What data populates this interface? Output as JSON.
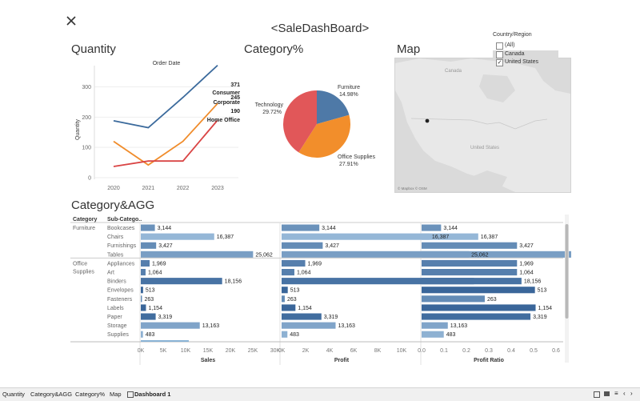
{
  "dashboard": {
    "title": "<SaleDashBoard>",
    "close_icon": "close-icon"
  },
  "sections": {
    "quantity": "Quantity",
    "category_pct": "Category%",
    "map": "Map",
    "category_agg": "Category&AGG"
  },
  "filter": {
    "title": "Country/Region",
    "options": [
      {
        "label": "(All)",
        "checked": false
      },
      {
        "label": "Canada",
        "checked": false
      },
      {
        "label": "United States",
        "checked": true
      }
    ]
  },
  "map": {
    "labels": {
      "canada": "Canada",
      "united_states": "United States",
      "credit": "© Mapbox © OSM"
    },
    "land_color": "#e8e8e8",
    "water_color": "#dadada",
    "marker_color": "#222222"
  },
  "chart_data": [
    {
      "type": "line",
      "title": "Order Date",
      "xlabel": "",
      "ylabel": "Quantity",
      "x": [
        "2020",
        "2021",
        "2022",
        "2023"
      ],
      "ylim": [
        0,
        370
      ],
      "yticks": [
        0,
        100,
        200,
        300
      ],
      "series": [
        {
          "name": "Consumer",
          "values": [
            188,
            165,
            265,
            371
          ],
          "color": "#3b6a9c",
          "end_label": "371"
        },
        {
          "name": "Corporate",
          "values": [
            120,
            42,
            120,
            245
          ],
          "color": "#f08c2b",
          "end_label": "245"
        },
        {
          "name": "Home Office",
          "values": [
            37,
            55,
            55,
            190
          ],
          "color": "#d94444",
          "end_label": "190"
        }
      ]
    },
    {
      "type": "pie",
      "slices": [
        {
          "name": "Furniture",
          "value": 14.98,
          "label": "14.98%",
          "color": "#4e79a7"
        },
        {
          "name": "Office Supplies",
          "value": 27.91,
          "label": "27.91%",
          "color": "#f28e2b"
        },
        {
          "name": "Technology",
          "value": 29.72,
          "label": "29.72%",
          "color": "#e15759"
        }
      ]
    },
    {
      "type": "bar",
      "orientation": "horizontal",
      "column_headers": {
        "category": "Category",
        "subcategory": "Sub-Catego.."
      },
      "groups": [
        {
          "category": "Furniture",
          "subcategories": [
            "Bookcases",
            "Chairs",
            "Furnishings",
            "Tables"
          ]
        },
        {
          "category": "Office Supplies",
          "subcategories": [
            "Appliances",
            "Art",
            "Binders",
            "Envelopes",
            "Fasteners",
            "Labels",
            "Paper",
            "Storage",
            "Supplies"
          ]
        }
      ],
      "rows": [
        {
          "label": "3,144",
          "sales": 3144,
          "profit": 3144,
          "profit_ratio": 0.087,
          "shade": 0.55
        },
        {
          "label": "16,387",
          "sales": 16387,
          "profit": 16387,
          "profit_ratio": 0.0354,
          "shade": 0.25
        },
        {
          "label": "3,427",
          "sales": 3427,
          "profit": 3427,
          "profit_ratio": 0.426,
          "shade": 0.6
        },
        {
          "label": "25,062",
          "sales": 25062,
          "profit": 25062,
          "profit_ratio": 0.211,
          "shade": 0.45
        },
        {
          "label": "1,969",
          "sales": 1969,
          "profit": 1969,
          "profit_ratio": 0.426,
          "shade": 0.7
        },
        {
          "label": "1,064",
          "sales": 1064,
          "profit": 1064,
          "profit_ratio": 0.426,
          "shade": 0.7
        },
        {
          "label": "18,156",
          "sales": 18156,
          "profit": 16030,
          "profit_ratio": 0.446,
          "shade": 0.8
        },
        {
          "label": "513",
          "sales": 513,
          "profit": 513,
          "profit_ratio": 0.506,
          "shade": 0.9
        },
        {
          "label": "263",
          "sales": 263,
          "profit": 263,
          "profit_ratio": 0.282,
          "shade": 0.6
        },
        {
          "label": "1,154",
          "sales": 1154,
          "profit": 1154,
          "profit_ratio": 0.509,
          "shade": 0.9
        },
        {
          "label": "3,319",
          "sales": 3319,
          "profit": 3319,
          "profit_ratio": 0.486,
          "shade": 0.85
        },
        {
          "label": "13,163",
          "sales": 13163,
          "profit": 4500,
          "profit_ratio": 0.117,
          "shade": 0.4
        },
        {
          "label": "483",
          "sales": 483,
          "profit": 483,
          "profit_ratio": 0.099,
          "shade": 0.3
        }
      ],
      "measures": [
        {
          "name": "Sales",
          "key": "sales",
          "max": 30000,
          "ticks": [
            "0K",
            "5K",
            "10K",
            "15K",
            "20K",
            "25K",
            "30K"
          ]
        },
        {
          "name": "Profit",
          "key": "profit",
          "max": 10000,
          "ticks": [
            "0K",
            "2K",
            "4K",
            "6K",
            "8K",
            "10K"
          ]
        },
        {
          "name": "Profit Ratio",
          "key": "profit_ratio",
          "max": 0.6,
          "ticks": [
            "0.0",
            "0.1",
            "0.2",
            "0.3",
            "0.4",
            "0.5",
            "0.6"
          ]
        }
      ]
    }
  ],
  "tabs": [
    {
      "label": "Quantity"
    },
    {
      "label": "Category&AGG"
    },
    {
      "label": "Category%"
    },
    {
      "label": "Map"
    },
    {
      "label": "Dashboard 1",
      "active": true
    }
  ]
}
